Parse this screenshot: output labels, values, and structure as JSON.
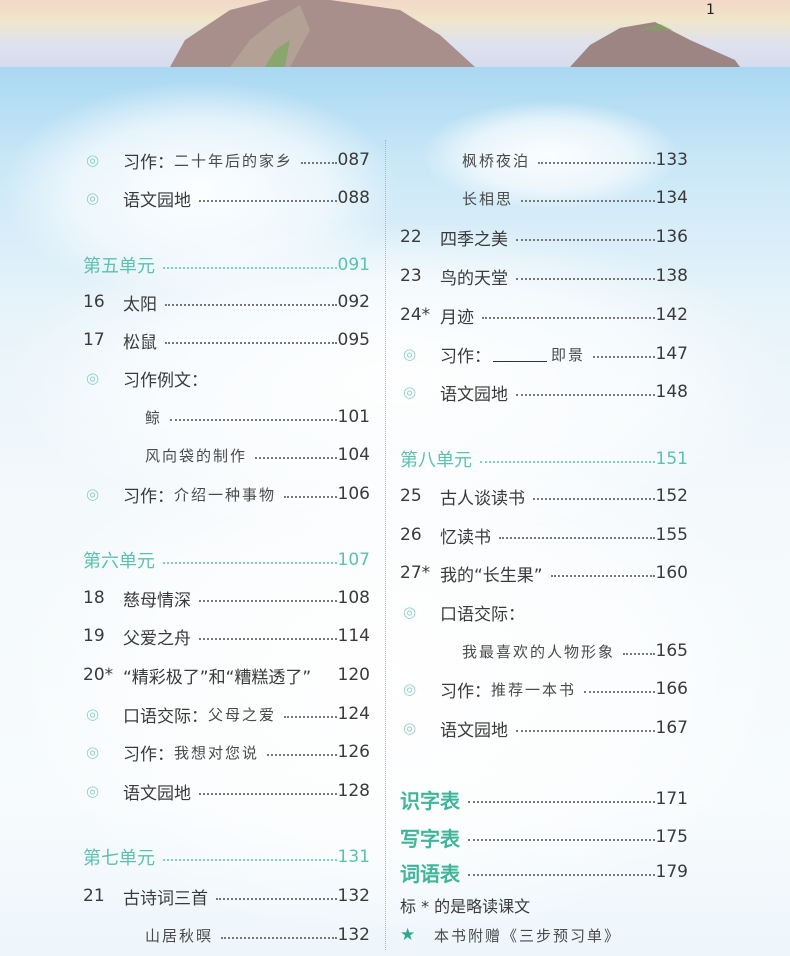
{
  "page_number": "1",
  "left": [
    {
      "type": "icon",
      "title": "习作：",
      "sub": "二十年后的家乡",
      "page": "087"
    },
    {
      "type": "icon",
      "title": "语文园地",
      "page": "088"
    },
    {
      "type": "unit",
      "title": "第五单元",
      "page": "091"
    },
    {
      "type": "lesson",
      "num": "16",
      "title": "太阳",
      "page": "092"
    },
    {
      "type": "lesson",
      "num": "17",
      "title": "松鼠",
      "page": "095"
    },
    {
      "type": "icon",
      "title": "习作例文：",
      "page": ""
    },
    {
      "type": "sub",
      "sub": "鲸",
      "page": "101"
    },
    {
      "type": "sub",
      "sub": "风向袋的制作",
      "page": "104"
    },
    {
      "type": "icon",
      "title": "习作：",
      "sub": "介绍一种事物",
      "page": "106"
    },
    {
      "type": "unit",
      "title": "第六单元",
      "page": "107"
    },
    {
      "type": "lesson",
      "num": "18",
      "title": "慈母情深",
      "page": "108"
    },
    {
      "type": "lesson",
      "num": "19",
      "title": "父爱之舟",
      "page": "114"
    },
    {
      "type": "lesson",
      "num": "20*",
      "title": "“精彩极了”和“糟糕透了”",
      "page": "120",
      "noleader": true
    },
    {
      "type": "icon",
      "title": "口语交际：",
      "sub": "父母之爱",
      "page": "124"
    },
    {
      "type": "icon",
      "title": "习作：",
      "sub": "我想对您说",
      "page": "126"
    },
    {
      "type": "icon",
      "title": "语文园地",
      "page": "128"
    },
    {
      "type": "unit",
      "title": "第七单元",
      "page": "131"
    },
    {
      "type": "lesson",
      "num": "21",
      "title": "古诗词三首",
      "page": "132"
    },
    {
      "type": "sub",
      "sub": "山居秋暝",
      "page": "132"
    }
  ],
  "right": [
    {
      "type": "sub",
      "sub": "枫桥夜泊",
      "page": "133"
    },
    {
      "type": "sub",
      "sub": "长相思",
      "page": "134"
    },
    {
      "type": "lesson",
      "num": "22",
      "title": "四季之美",
      "page": "136"
    },
    {
      "type": "lesson",
      "num": "23",
      "title": "鸟的天堂",
      "page": "138"
    },
    {
      "type": "lesson",
      "num": "24*",
      "title": "月迹",
      "page": "142"
    },
    {
      "type": "icon",
      "title": "习作：",
      "blank": true,
      "sub": "即景",
      "page": "147"
    },
    {
      "type": "icon",
      "title": "语文园地",
      "page": "148"
    },
    {
      "type": "unit",
      "title": "第八单元",
      "page": "151"
    },
    {
      "type": "lesson",
      "num": "25",
      "title": "古人谈读书",
      "page": "152"
    },
    {
      "type": "lesson",
      "num": "26",
      "title": "忆读书",
      "page": "155"
    },
    {
      "type": "lesson",
      "num": "27*",
      "title": "我的“长生果”",
      "page": "160"
    },
    {
      "type": "icon",
      "title": "口语交际：",
      "page": ""
    },
    {
      "type": "sub",
      "sub": "我最喜欢的人物形象",
      "page": "165"
    },
    {
      "type": "icon",
      "title": "习作：",
      "sub": "推荐一本书",
      "page": "166"
    },
    {
      "type": "icon",
      "title": "语文园地",
      "page": "167"
    },
    {
      "type": "table",
      "title": "识字表",
      "page": "171"
    },
    {
      "type": "table",
      "title": "写字表",
      "page": "175"
    },
    {
      "type": "table",
      "title": "词语表",
      "page": "179"
    },
    {
      "type": "note",
      "title": "标 * 的是略读课文"
    },
    {
      "type": "star",
      "sub": "本书附赠《三步预习单》"
    }
  ],
  "icons": {
    "bullet": "double-circle-icon",
    "star": "star-icon"
  },
  "colors": {
    "unit": "#5cc1b0",
    "table": "#3fb59a",
    "bullet": "#8fcfc9"
  }
}
